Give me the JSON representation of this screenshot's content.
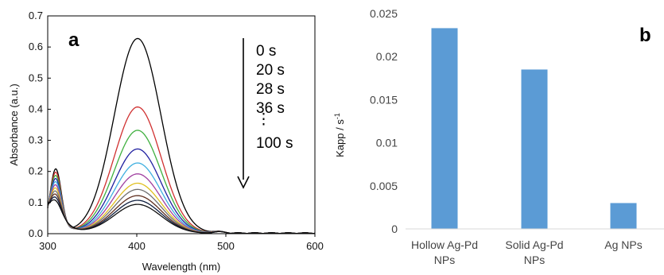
{
  "chart_data": [
    {
      "type": "line",
      "panel_label": "a",
      "xlabel": "Wavelength (nm)",
      "ylabel": "Absorbance (a.u.)",
      "xlim": [
        300,
        600
      ],
      "ylim": [
        0,
        0.7
      ],
      "xticks": [
        "300",
        "400",
        "500",
        "600"
      ],
      "yticks": [
        "0.0",
        "0.1",
        "0.2",
        "0.3",
        "0.4",
        "0.5",
        "0.6",
        "0.7"
      ],
      "annotation_labels": [
        "0 s",
        "20 s",
        "28 s",
        "36 s",
        "⋮",
        "100 s"
      ],
      "series": [
        {
          "peak_value": 0.625,
          "color": "#000000"
        },
        {
          "peak_value": 0.405,
          "color": "#d03030"
        },
        {
          "peak_value": 0.33,
          "color": "#40b040"
        },
        {
          "peak_value": 0.27,
          "color": "#2020a0"
        },
        {
          "peak_value": 0.225,
          "color": "#40b0e0"
        },
        {
          "peak_value": 0.19,
          "color": "#a040a0"
        },
        {
          "peak_value": 0.16,
          "color": "#e0c020"
        },
        {
          "peak_value": 0.14,
          "color": "#707070"
        },
        {
          "peak_value": 0.12,
          "color": "#603020"
        },
        {
          "peak_value": 0.105,
          "color": "#102040"
        },
        {
          "peak_value": 0.092,
          "color": "#101010"
        }
      ],
      "grid": false
    },
    {
      "type": "bar",
      "panel_label": "b",
      "categories": [
        [
          "Hollow Ag-Pd",
          "NPs"
        ],
        [
          "Solid Ag-Pd",
          "NPs"
        ],
        [
          "Ag NPs"
        ]
      ],
      "values": [
        0.0233,
        0.0185,
        0.003
      ],
      "ylabel": "Kapp / s",
      "ylabel_superscript": "-1",
      "ylim": [
        0,
        0.025
      ],
      "yticks": [
        "0",
        "0.005",
        "0.01",
        "0.015",
        "0.02",
        "0.025"
      ],
      "bar_color": "#5b9bd5",
      "grid": false
    }
  ]
}
